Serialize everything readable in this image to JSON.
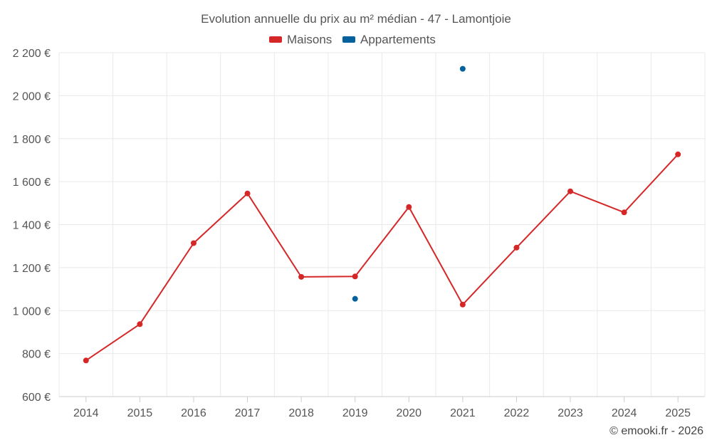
{
  "chart_data": {
    "type": "line",
    "title": "Evolution annuelle du prix au m² médian - 47 - Lamontjoie",
    "categories": [
      "2014",
      "2015",
      "2016",
      "2017",
      "2018",
      "2019",
      "2020",
      "2021",
      "2022",
      "2023",
      "2024",
      "2025"
    ],
    "ylim": [
      600,
      2200
    ],
    "yticks": [
      600,
      800,
      1000,
      1200,
      1400,
      1600,
      1800,
      2000,
      2200
    ],
    "ytick_labels": [
      "600 €",
      "800 €",
      "1 000 €",
      "1 200 €",
      "1 400 €",
      "1 600 €",
      "1 800 €",
      "2 000 €",
      "2 200 €"
    ],
    "grid": true,
    "legend_position": "top-center",
    "series": [
      {
        "name": "Maisons",
        "color": "#d62728",
        "values": [
          768,
          937,
          1314,
          1545,
          1157,
          1159,
          1482,
          1028,
          1293,
          1555,
          1457,
          1727
        ]
      },
      {
        "name": "Appartements",
        "color": "#04619e",
        "values": [
          null,
          null,
          null,
          null,
          null,
          1055,
          null,
          2125,
          null,
          null,
          null,
          null
        ]
      }
    ],
    "credit": "© emooki.fr - 2026"
  }
}
